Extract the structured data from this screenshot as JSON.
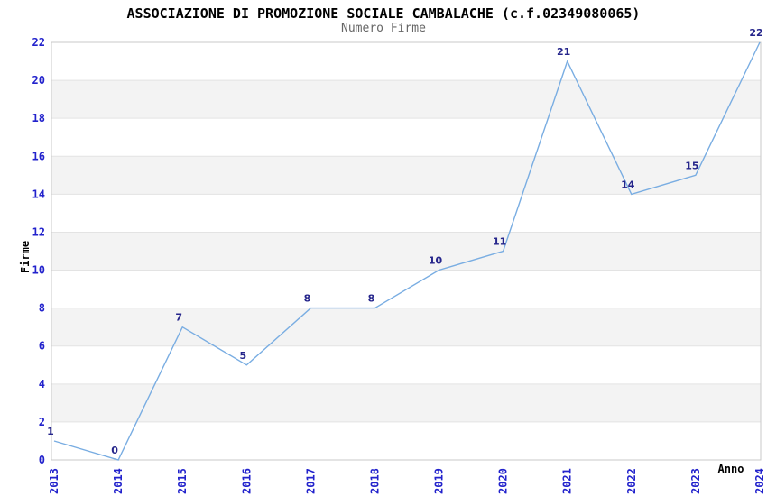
{
  "chart_data": {
    "type": "line",
    "title": "ASSOCIAZIONE DI PROMOZIONE SOCIALE CAMBALACHE (c.f.02349080065)",
    "subtitle": "Numero Firme",
    "xlabel": "Anno",
    "ylabel": "Firme",
    "categories": [
      "2013",
      "2014",
      "2015",
      "2016",
      "2017",
      "2018",
      "2019",
      "2020",
      "2021",
      "2022",
      "2023",
      "2024"
    ],
    "values": [
      1,
      0,
      7,
      5,
      8,
      8,
      10,
      11,
      21,
      14,
      15,
      22
    ],
    "point_labels": [
      "1",
      "0",
      "7",
      "5",
      "8",
      "8",
      "10",
      "11",
      "21",
      "14",
      "15",
      "22"
    ],
    "yticks": [
      0,
      2,
      4,
      6,
      8,
      10,
      12,
      14,
      16,
      18,
      20,
      22
    ],
    "ylim": [
      0,
      22
    ],
    "grid": "horizontal-bands-every-2-units",
    "legend": "none",
    "colors": {
      "line": "#79ade2",
      "band": "#f3f3f3",
      "gridline": "#e3e3e3",
      "frame": "#c9c9c9",
      "tick_label": "#2222cc",
      "point_label": "#25258b",
      "title": "#000000",
      "subtitle": "#666666",
      "axis_label": "#000000"
    }
  }
}
